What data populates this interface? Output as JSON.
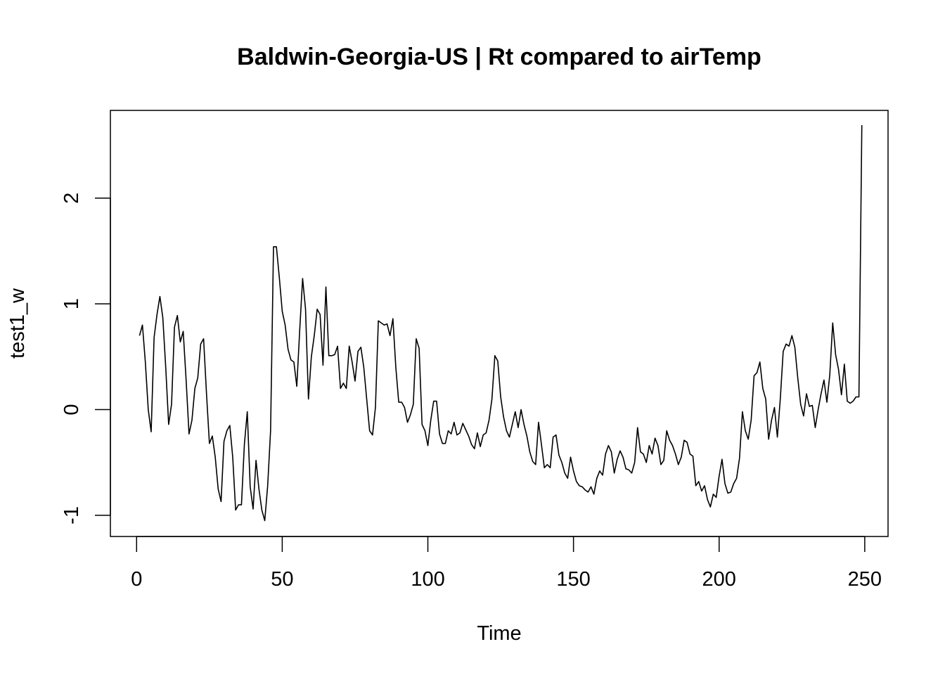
{
  "chart_data": {
    "type": "line",
    "title": "Baldwin-Georgia-US | Rt compared to airTemp",
    "xlabel": "Time",
    "ylabel": "test1_w",
    "xlim": [
      -9,
      258
    ],
    "ylim": [
      -1.2,
      2.83
    ],
    "x_ticks": [
      0,
      50,
      100,
      150,
      200,
      250
    ],
    "y_ticks": [
      -1,
      0,
      1,
      2
    ],
    "grid": false,
    "legend": "none",
    "line_color": "#000000",
    "x_start": 1,
    "series": [
      {
        "values": [
          0.7,
          0.8,
          0.45,
          0.0,
          -0.21,
          0.68,
          0.9,
          1.07,
          0.87,
          0.4,
          -0.14,
          0.05,
          0.78,
          0.89,
          0.64,
          0.74,
          0.28,
          -0.23,
          -0.1,
          0.2,
          0.3,
          0.62,
          0.67,
          0.15,
          -0.32,
          -0.25,
          -0.45,
          -0.75,
          -0.87,
          -0.3,
          -0.2,
          -0.15,
          -0.45,
          -0.95,
          -0.9,
          -0.9,
          -0.33,
          -0.02,
          -0.73,
          -0.94,
          -0.48,
          -0.75,
          -0.95,
          -1.05,
          -0.72,
          -0.2,
          1.54,
          1.54,
          1.25,
          0.93,
          0.8,
          0.57,
          0.47,
          0.45,
          0.22,
          0.75,
          1.24,
          0.95,
          0.1,
          0.5,
          0.7,
          0.95,
          0.9,
          0.42,
          1.16,
          0.51,
          0.51,
          0.52,
          0.6,
          0.2,
          0.25,
          0.2,
          0.6,
          0.45,
          0.27,
          0.55,
          0.59,
          0.4,
          0.1,
          -0.2,
          -0.24,
          0.02,
          0.84,
          0.82,
          0.8,
          0.81,
          0.7,
          0.86,
          0.4,
          0.07,
          0.07,
          0.02,
          -0.12,
          -0.05,
          0.05,
          0.67,
          0.58,
          -0.14,
          -0.2,
          -0.34,
          -0.1,
          0.08,
          0.08,
          -0.23,
          -0.32,
          -0.32,
          -0.2,
          -0.23,
          -0.12,
          -0.24,
          -0.22,
          -0.13,
          -0.19,
          -0.25,
          -0.33,
          -0.37,
          -0.22,
          -0.35,
          -0.24,
          -0.22,
          -0.1,
          0.1,
          0.51,
          0.46,
          0.12,
          -0.07,
          -0.2,
          -0.26,
          -0.14,
          -0.02,
          -0.17,
          0.0,
          -0.14,
          -0.25,
          -0.4,
          -0.49,
          -0.52,
          -0.12,
          -0.33,
          -0.55,
          -0.52,
          -0.55,
          -0.26,
          -0.24,
          -0.43,
          -0.5,
          -0.6,
          -0.65,
          -0.45,
          -0.58,
          -0.68,
          -0.72,
          -0.73,
          -0.76,
          -0.78,
          -0.73,
          -0.8,
          -0.65,
          -0.58,
          -0.62,
          -0.42,
          -0.34,
          -0.4,
          -0.6,
          -0.47,
          -0.39,
          -0.45,
          -0.56,
          -0.57,
          -0.6,
          -0.5,
          -0.17,
          -0.4,
          -0.42,
          -0.5,
          -0.34,
          -0.42,
          -0.27,
          -0.34,
          -0.52,
          -0.48,
          -0.2,
          -0.29,
          -0.34,
          -0.42,
          -0.52,
          -0.45,
          -0.29,
          -0.31,
          -0.42,
          -0.44,
          -0.72,
          -0.68,
          -0.77,
          -0.72,
          -0.85,
          -0.92,
          -0.8,
          -0.83,
          -0.63,
          -0.47,
          -0.7,
          -0.79,
          -0.78,
          -0.7,
          -0.65,
          -0.46,
          -0.02,
          -0.2,
          -0.28,
          -0.1,
          0.32,
          0.35,
          0.45,
          0.2,
          0.1,
          -0.28,
          -0.1,
          0.02,
          -0.26,
          0.1,
          0.55,
          0.62,
          0.6,
          0.7,
          0.59,
          0.3,
          0.05,
          -0.06,
          0.15,
          0.03,
          0.04,
          -0.17,
          0.0,
          0.15,
          0.28,
          0.07,
          0.33,
          0.82,
          0.52,
          0.38,
          0.14,
          0.43,
          0.08,
          0.06,
          0.08,
          0.12,
          0.12,
          2.69
        ]
      }
    ]
  }
}
